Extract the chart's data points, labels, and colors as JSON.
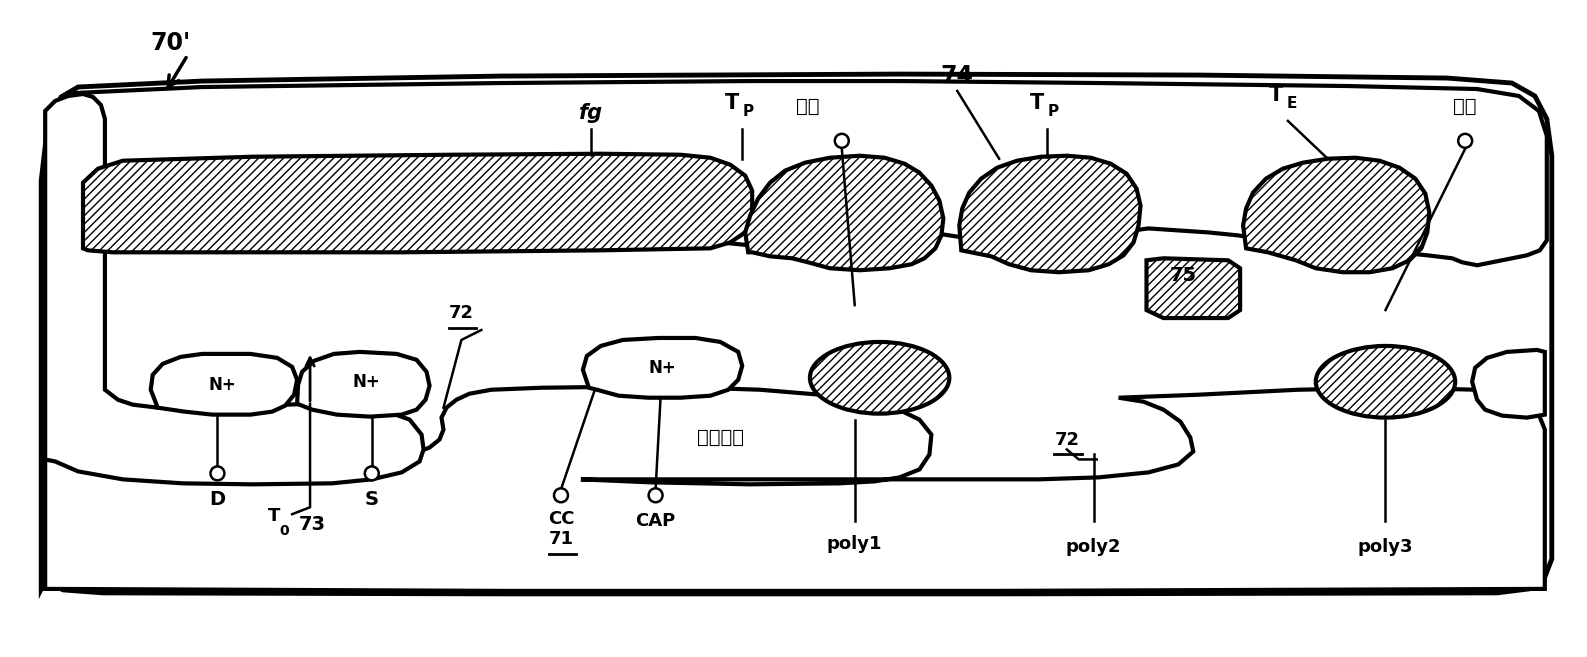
{
  "bg_color": "#ffffff",
  "line_color": "#000000",
  "figsize": [
    15.87,
    6.57
  ],
  "dpi": 100,
  "lw_main": 3.0,
  "lw_thin": 1.8,
  "labels": {
    "70prime": "70'",
    "fg": "fg",
    "T": "T",
    "P_sub": "P",
    "E_sub": "E",
    "biancheng": "编程",
    "cachu": "擦除",
    "changyanghua": "场氧化层",
    "74": "74",
    "75": "75",
    "72": "72",
    "73": "73",
    "71": "71",
    "Nplus": "N+",
    "D": "D",
    "S": "S",
    "T0": "T",
    "CC": "CC",
    "CAP": "CAP",
    "poly1": "poly1",
    "poly2": "poly2",
    "poly3": "poly3"
  }
}
